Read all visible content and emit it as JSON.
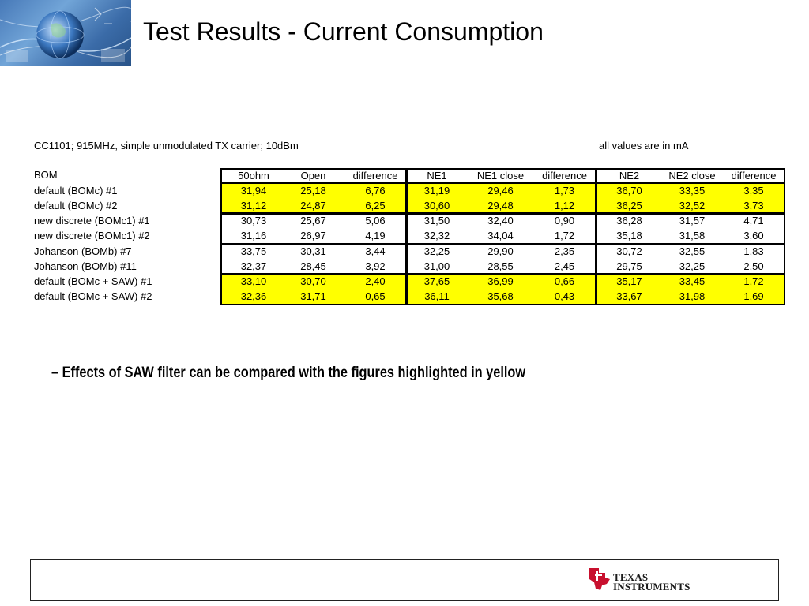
{
  "slide": {
    "title": "Test Results - Current Consumption",
    "caption_left": "CC1101; 915MHz, simple unmodulated TX carrier; 10dBm",
    "caption_right": "all values are in mA",
    "bullet": "– Effects of SAW filter can be compared with the figures highlighted in yellow"
  },
  "table": {
    "bom_header": "BOM",
    "headers": [
      "50ohm",
      "Open",
      "difference",
      "NE1",
      "NE1 close",
      "difference",
      "NE2",
      "NE2 close",
      "difference"
    ],
    "rows": [
      {
        "bom": "default (BOMc) #1",
        "values": [
          "31,94",
          "25,18",
          "6,76",
          "31,19",
          "29,46",
          "1,73",
          "36,70",
          "33,35",
          "3,35"
        ],
        "highlight": true
      },
      {
        "bom": "default (BOMc) #2",
        "values": [
          "31,12",
          "24,87",
          "6,25",
          "30,60",
          "29,48",
          "1,12",
          "36,25",
          "32,52",
          "3,73"
        ],
        "highlight": true
      },
      {
        "bom": "new discrete (BOMc1) #1",
        "values": [
          "30,73",
          "25,67",
          "5,06",
          "31,50",
          "32,40",
          "0,90",
          "36,28",
          "31,57",
          "4,71"
        ],
        "highlight": false
      },
      {
        "bom": "new discrete (BOMc1) #2",
        "values": [
          "31,16",
          "26,97",
          "4,19",
          "32,32",
          "34,04",
          "1,72",
          "35,18",
          "31,58",
          "3,60"
        ],
        "highlight": false
      },
      {
        "bom": "Johanson (BOMb) #7",
        "values": [
          "33,75",
          "30,31",
          "3,44",
          "32,25",
          "29,90",
          "2,35",
          "30,72",
          "32,55",
          "1,83"
        ],
        "highlight": false
      },
      {
        "bom": "Johanson (BOMb) #11",
        "values": [
          "32,37",
          "28,45",
          "3,92",
          "31,00",
          "28,55",
          "2,45",
          "29,75",
          "32,25",
          "2,50"
        ],
        "highlight": false
      },
      {
        "bom": "default (BOMc + SAW) #1",
        "values": [
          "33,10",
          "30,70",
          "2,40",
          "37,65",
          "36,99",
          "0,66",
          "35,17",
          "33,45",
          "1,72"
        ],
        "highlight": true
      },
      {
        "bom": "default (BOMc + SAW) #2",
        "values": [
          "32,36",
          "31,71",
          "0,65",
          "36,11",
          "35,68",
          "0,43",
          "33,67",
          "31,98",
          "1,69"
        ],
        "highlight": true
      }
    ]
  },
  "footer": {
    "logo_line1": "Texas",
    "logo_line2": "Instruments",
    "logo_icon": "texas-instruments-logo-icon",
    "accent_color": "#c8102e"
  },
  "header": {
    "logo_icon": "globe-header-image"
  }
}
